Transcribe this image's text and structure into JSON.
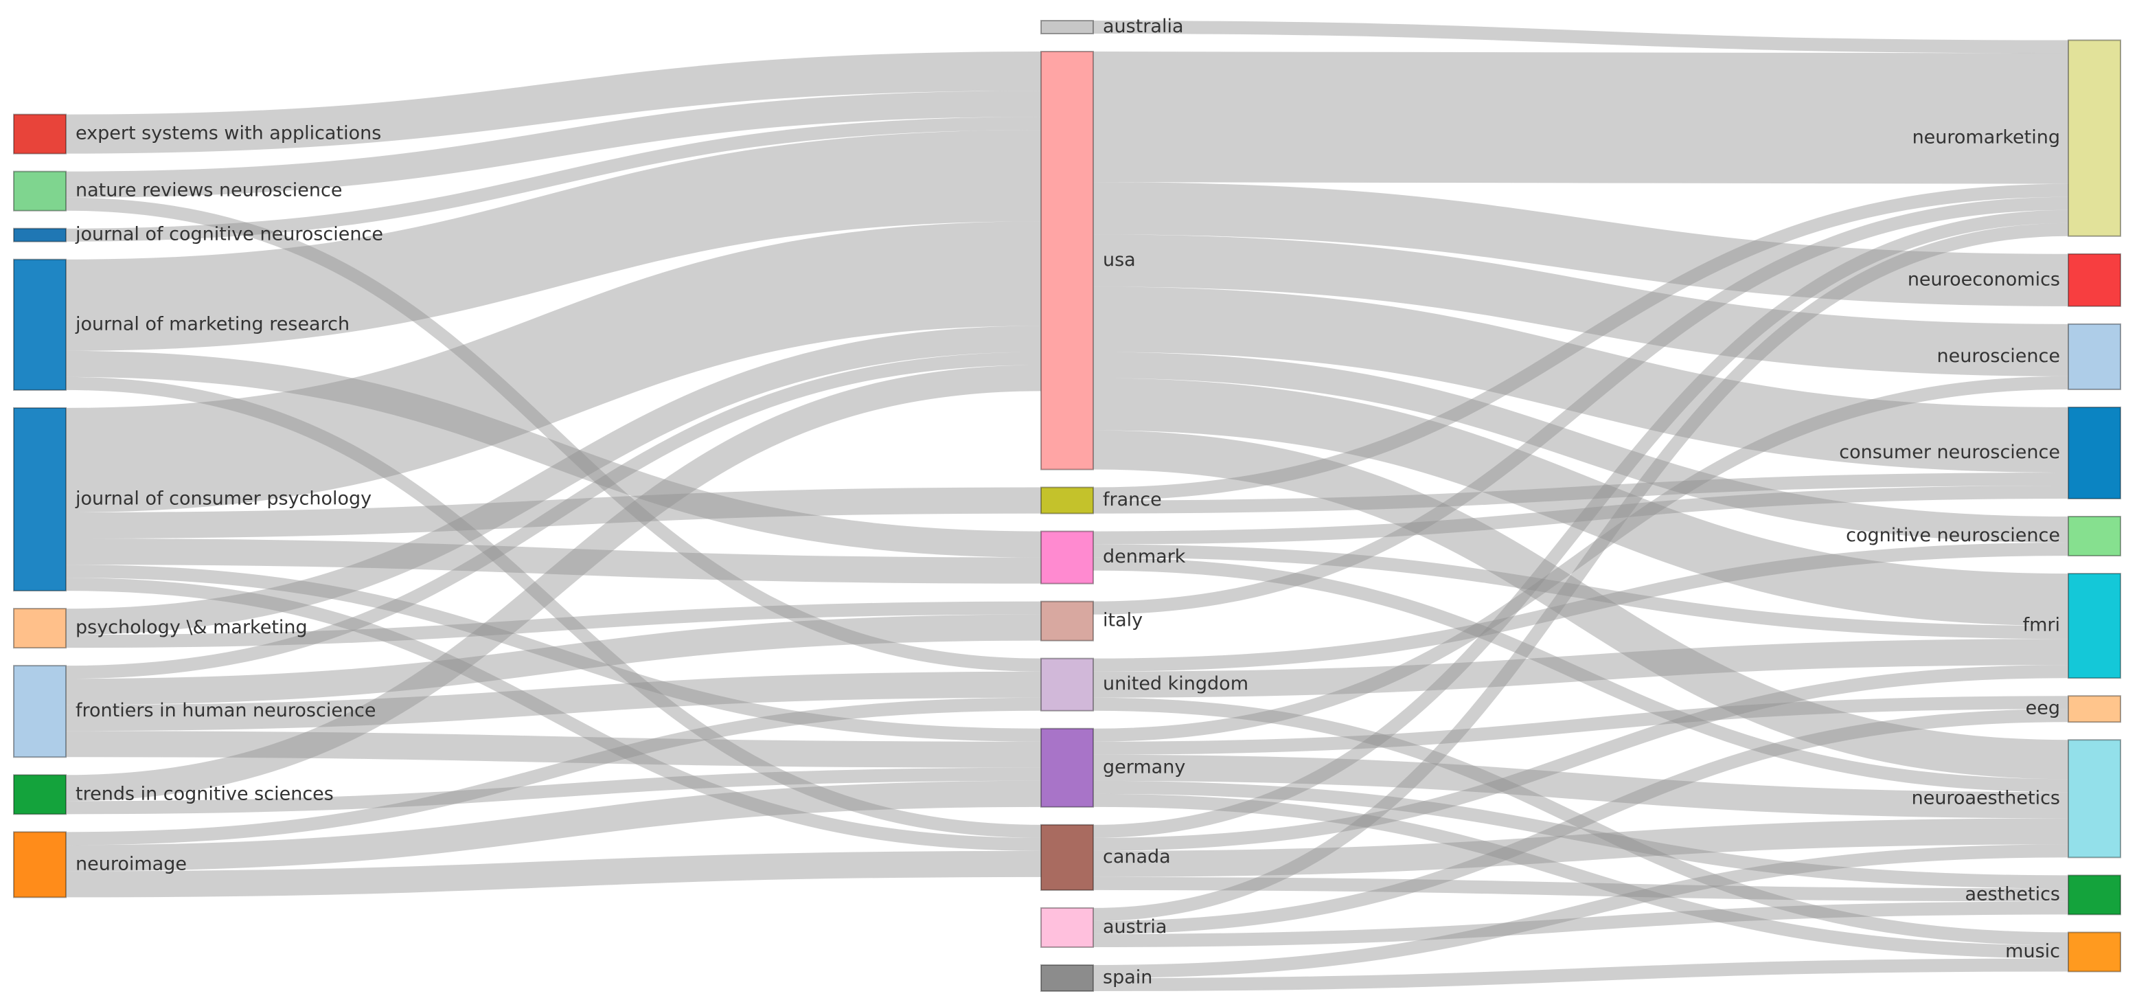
{
  "chart_data": {
    "type": "sankey",
    "columns": [
      [
        {
          "id": "expert",
          "label": "expert systems with applications",
          "color": "#e8443a"
        },
        {
          "id": "nrn",
          "label": "nature reviews neuroscience",
          "color": "#7fd58f"
        },
        {
          "id": "jcn",
          "label": "journal of cognitive neuroscience",
          "color": "#1f77b4"
        },
        {
          "id": "jmr",
          "label": "journal of marketing research",
          "color": "#1f86c4"
        },
        {
          "id": "jcp",
          "label": "journal of consumer psychology",
          "color": "#1f86c4"
        },
        {
          "id": "pm",
          "label": "psychology \\& marketing",
          "color": "#ffc08a"
        },
        {
          "id": "fhn",
          "label": "frontiers in human neuroscience",
          "color": "#aecde8"
        },
        {
          "id": "tcs",
          "label": "trends in cognitive sciences",
          "color": "#14a33c"
        },
        {
          "id": "ni",
          "label": "neuroimage",
          "color": "#ff8c1a"
        }
      ],
      [
        {
          "id": "australia",
          "label": "australia",
          "color": "#c7c7c7"
        },
        {
          "id": "usa",
          "label": "usa",
          "color": "#ffa5a5"
        },
        {
          "id": "france",
          "label": "france",
          "color": "#c4c22b"
        },
        {
          "id": "denmark",
          "label": "denmark",
          "color": "#ff8ad0"
        },
        {
          "id": "italy",
          "label": "italy",
          "color": "#d8a8a0"
        },
        {
          "id": "uk",
          "label": "united kingdom",
          "color": "#d1b8d9"
        },
        {
          "id": "germany",
          "label": "germany",
          "color": "#a874c8"
        },
        {
          "id": "canada",
          "label": "canada",
          "color": "#a96b60"
        },
        {
          "id": "austria",
          "label": "austria",
          "color": "#ffc0dd"
        },
        {
          "id": "spain",
          "label": "spain",
          "color": "#8c8c8c"
        }
      ],
      [
        {
          "id": "neuromarketing",
          "label": "neuromarketing",
          "color": "#e2e29a"
        },
        {
          "id": "neuroeconomics",
          "label": "neuroeconomics",
          "color": "#f73e40"
        },
        {
          "id": "neuroscience",
          "label": "neuroscience",
          "color": "#aecde8"
        },
        {
          "id": "consumer",
          "label": "consumer neuroscience",
          "color": "#0b84c2"
        },
        {
          "id": "cognitive",
          "label": "cognitive neuroscience",
          "color": "#86e08f"
        },
        {
          "id": "fmri",
          "label": "fmri",
          "color": "#14c8d8"
        },
        {
          "id": "eeg",
          "label": "eeg",
          "color": "#ffc58c"
        },
        {
          "id": "neuroaesthetics",
          "label": "neuroaesthetics",
          "color": "#93e0ea"
        },
        {
          "id": "aesthetics",
          "label": "aesthetics",
          "color": "#14a33c"
        },
        {
          "id": "music",
          "label": "music",
          "color": "#ff9a1f"
        }
      ]
    ],
    "links": [
      {
        "source": "expert",
        "target": "usa",
        "value": 3
      },
      {
        "source": "nrn",
        "target": "usa",
        "value": 2
      },
      {
        "source": "nrn",
        "target": "uk",
        "value": 1
      },
      {
        "source": "jcn",
        "target": "usa",
        "value": 1
      },
      {
        "source": "jmr",
        "target": "usa",
        "value": 7
      },
      {
        "source": "jmr",
        "target": "denmark",
        "value": 2
      },
      {
        "source": "jmr",
        "target": "canada",
        "value": 1
      },
      {
        "source": "jcp",
        "target": "usa",
        "value": 8
      },
      {
        "source": "jcp",
        "target": "france",
        "value": 2
      },
      {
        "source": "jcp",
        "target": "denmark",
        "value": 2
      },
      {
        "source": "jcp",
        "target": "germany",
        "value": 1
      },
      {
        "source": "jcp",
        "target": "canada",
        "value": 1
      },
      {
        "source": "pm",
        "target": "usa",
        "value": 2
      },
      {
        "source": "pm",
        "target": "italy",
        "value": 1
      },
      {
        "source": "fhn",
        "target": "usa",
        "value": 1
      },
      {
        "source": "fhn",
        "target": "italy",
        "value": 2
      },
      {
        "source": "fhn",
        "target": "uk",
        "value": 2
      },
      {
        "source": "fhn",
        "target": "germany",
        "value": 2
      },
      {
        "source": "tcs",
        "target": "usa",
        "value": 2
      },
      {
        "source": "tcs",
        "target": "germany",
        "value": 1
      },
      {
        "source": "ni",
        "target": "uk",
        "value": 1
      },
      {
        "source": "ni",
        "target": "germany",
        "value": 2
      },
      {
        "source": "ni",
        "target": "canada",
        "value": 2
      },
      {
        "source": "australia",
        "target": "neuromarketing",
        "value": 1
      },
      {
        "source": "usa",
        "target": "neuromarketing",
        "value": 10
      },
      {
        "source": "usa",
        "target": "neuroeconomics",
        "value": 4
      },
      {
        "source": "usa",
        "target": "neuroscience",
        "value": 4
      },
      {
        "source": "usa",
        "target": "consumer",
        "value": 5
      },
      {
        "source": "usa",
        "target": "cognitive",
        "value": 2
      },
      {
        "source": "usa",
        "target": "fmri",
        "value": 4
      },
      {
        "source": "usa",
        "target": "neuroaesthetics",
        "value": 3
      },
      {
        "source": "france",
        "target": "neuromarketing",
        "value": 1
      },
      {
        "source": "france",
        "target": "consumer",
        "value": 1
      },
      {
        "source": "denmark",
        "target": "consumer",
        "value": 1
      },
      {
        "source": "denmark",
        "target": "fmri",
        "value": 1
      },
      {
        "source": "denmark",
        "target": "neuroaesthetics",
        "value": 1
      },
      {
        "source": "italy",
        "target": "neuromarketing",
        "value": 1
      },
      {
        "source": "uk",
        "target": "cognitive",
        "value": 1
      },
      {
        "source": "uk",
        "target": "fmri",
        "value": 2
      },
      {
        "source": "uk",
        "target": "music",
        "value": 1
      },
      {
        "source": "germany",
        "target": "neuroscience",
        "value": 1
      },
      {
        "source": "germany",
        "target": "eeg",
        "value": 1
      },
      {
        "source": "germany",
        "target": "neuroaesthetics",
        "value": 2
      },
      {
        "source": "germany",
        "target": "aesthetics",
        "value": 1
      },
      {
        "source": "germany",
        "target": "music",
        "value": 1
      },
      {
        "source": "canada",
        "target": "neuromarketing",
        "value": 1
      },
      {
        "source": "canada",
        "target": "fmri",
        "value": 1
      },
      {
        "source": "canada",
        "target": "neuroaesthetics",
        "value": 2
      },
      {
        "source": "canada",
        "target": "aesthetics",
        "value": 1
      },
      {
        "source": "austria",
        "target": "neuromarketing",
        "value": 1
      },
      {
        "source": "austria",
        "target": "eeg",
        "value": 1
      },
      {
        "source": "austria",
        "target": "aesthetics",
        "value": 1
      },
      {
        "source": "spain",
        "target": "neuroaesthetics",
        "value": 1
      },
      {
        "source": "spain",
        "target": "music",
        "value": 1
      }
    ]
  }
}
